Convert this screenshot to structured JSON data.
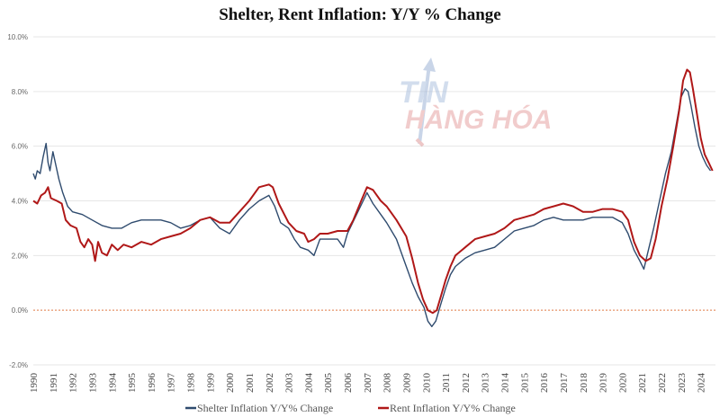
{
  "chart_data": {
    "type": "line",
    "title": "Shelter, Rent Inflation: Y/Y % Change",
    "xlabel": "",
    "ylabel": "",
    "ylim": [
      -2,
      10
    ],
    "xlim": [
      1990,
      2024.75
    ],
    "yticks": [
      -2,
      0,
      2,
      4,
      6,
      8,
      10
    ],
    "ytick_labels": [
      "-2.0%",
      "0.0%",
      "2.0%",
      "4.0%",
      "6.0%",
      "8.0%",
      "10.0%"
    ],
    "xticks": [
      "1990",
      "1991",
      "1992",
      "1993",
      "1994",
      "1995",
      "1996",
      "1997",
      "1998",
      "1999",
      "2000",
      "2001",
      "2002",
      "2003",
      "2004",
      "2005",
      "2006",
      "2007",
      "2008",
      "2009",
      "2010",
      "2011",
      "2012",
      "2013",
      "2014",
      "2015",
      "2016",
      "2017",
      "2018",
      "2019",
      "2020",
      "2021",
      "2022",
      "2023",
      "2024"
    ],
    "reference_line": 0,
    "legend_position": "bottom",
    "grid": "horizontal",
    "colors": {
      "shelter": "#2f4b6e",
      "rent": "#b01818",
      "zero_line": "#e07a45",
      "grid": "#e6e6e6"
    },
    "series": [
      {
        "name": "Shelter Inflation Y/Y% Change",
        "color": "#2f4b6e",
        "points": [
          [
            1990.0,
            5.0
          ],
          [
            1990.1,
            4.8
          ],
          [
            1990.2,
            5.1
          ],
          [
            1990.35,
            5.0
          ],
          [
            1990.5,
            5.6
          ],
          [
            1990.65,
            6.1
          ],
          [
            1990.75,
            5.4
          ],
          [
            1990.85,
            5.1
          ],
          [
            1991.0,
            5.8
          ],
          [
            1991.15,
            5.3
          ],
          [
            1991.3,
            4.8
          ],
          [
            1991.5,
            4.3
          ],
          [
            1991.75,
            3.8
          ],
          [
            1992.0,
            3.6
          ],
          [
            1992.5,
            3.5
          ],
          [
            1993.0,
            3.3
          ],
          [
            1993.5,
            3.1
          ],
          [
            1994.0,
            3.0
          ],
          [
            1994.5,
            3.0
          ],
          [
            1995.0,
            3.2
          ],
          [
            1995.5,
            3.3
          ],
          [
            1996.0,
            3.3
          ],
          [
            1996.5,
            3.3
          ],
          [
            1997.0,
            3.2
          ],
          [
            1997.5,
            3.0
          ],
          [
            1998.0,
            3.1
          ],
          [
            1998.5,
            3.3
          ],
          [
            1999.0,
            3.4
          ],
          [
            1999.5,
            3.0
          ],
          [
            2000.0,
            2.8
          ],
          [
            2000.5,
            3.3
          ],
          [
            2001.0,
            3.7
          ],
          [
            2001.5,
            4.0
          ],
          [
            2002.0,
            4.2
          ],
          [
            2002.3,
            3.8
          ],
          [
            2002.6,
            3.2
          ],
          [
            2003.0,
            3.0
          ],
          [
            2003.3,
            2.6
          ],
          [
            2003.6,
            2.3
          ],
          [
            2004.0,
            2.2
          ],
          [
            2004.3,
            2.0
          ],
          [
            2004.6,
            2.6
          ],
          [
            2005.0,
            2.6
          ],
          [
            2005.5,
            2.6
          ],
          [
            2005.8,
            2.3
          ],
          [
            2006.0,
            2.8
          ],
          [
            2006.4,
            3.4
          ],
          [
            2006.8,
            4.0
          ],
          [
            2007.0,
            4.3
          ],
          [
            2007.3,
            3.9
          ],
          [
            2007.7,
            3.5
          ],
          [
            2008.0,
            3.2
          ],
          [
            2008.5,
            2.6
          ],
          [
            2009.0,
            1.6
          ],
          [
            2009.3,
            1.0
          ],
          [
            2009.6,
            0.5
          ],
          [
            2009.9,
            0.1
          ],
          [
            2010.1,
            -0.4
          ],
          [
            2010.3,
            -0.6
          ],
          [
            2010.5,
            -0.4
          ],
          [
            2010.75,
            0.2
          ],
          [
            2011.0,
            0.8
          ],
          [
            2011.25,
            1.3
          ],
          [
            2011.5,
            1.6
          ],
          [
            2012.0,
            1.9
          ],
          [
            2012.5,
            2.1
          ],
          [
            2013.0,
            2.2
          ],
          [
            2013.5,
            2.3
          ],
          [
            2014.0,
            2.6
          ],
          [
            2014.5,
            2.9
          ],
          [
            2015.0,
            3.0
          ],
          [
            2015.5,
            3.1
          ],
          [
            2016.0,
            3.3
          ],
          [
            2016.5,
            3.4
          ],
          [
            2017.0,
            3.3
          ],
          [
            2017.5,
            3.3
          ],
          [
            2018.0,
            3.3
          ],
          [
            2018.5,
            3.4
          ],
          [
            2019.0,
            3.4
          ],
          [
            2019.5,
            3.4
          ],
          [
            2020.0,
            3.2
          ],
          [
            2020.3,
            2.8
          ],
          [
            2020.6,
            2.2
          ],
          [
            2020.9,
            1.8
          ],
          [
            2021.1,
            1.5
          ],
          [
            2021.3,
            2.1
          ],
          [
            2021.6,
            3.0
          ],
          [
            2021.9,
            4.0
          ],
          [
            2022.2,
            5.0
          ],
          [
            2022.5,
            5.8
          ],
          [
            2022.8,
            7.0
          ],
          [
            2023.0,
            7.8
          ],
          [
            2023.2,
            8.1
          ],
          [
            2023.35,
            8.0
          ],
          [
            2023.5,
            7.5
          ],
          [
            2023.7,
            6.7
          ],
          [
            2023.9,
            6.0
          ],
          [
            2024.1,
            5.6
          ],
          [
            2024.3,
            5.3
          ],
          [
            2024.5,
            5.1
          ]
        ]
      },
      {
        "name": "Rent Inflation Y/Y% Change",
        "color": "#b01818",
        "points": [
          [
            1990.0,
            4.0
          ],
          [
            1990.2,
            3.9
          ],
          [
            1990.4,
            4.2
          ],
          [
            1990.6,
            4.3
          ],
          [
            1990.75,
            4.5
          ],
          [
            1990.9,
            4.1
          ],
          [
            1991.2,
            4.0
          ],
          [
            1991.45,
            3.9
          ],
          [
            1991.65,
            3.3
          ],
          [
            1991.9,
            3.1
          ],
          [
            1992.2,
            3.0
          ],
          [
            1992.4,
            2.5
          ],
          [
            1992.6,
            2.3
          ],
          [
            1992.8,
            2.6
          ],
          [
            1993.0,
            2.4
          ],
          [
            1993.15,
            1.8
          ],
          [
            1993.3,
            2.5
          ],
          [
            1993.5,
            2.1
          ],
          [
            1993.75,
            2.0
          ],
          [
            1994.0,
            2.4
          ],
          [
            1994.3,
            2.2
          ],
          [
            1994.6,
            2.4
          ],
          [
            1995.0,
            2.3
          ],
          [
            1995.5,
            2.5
          ],
          [
            1996.0,
            2.4
          ],
          [
            1996.5,
            2.6
          ],
          [
            1997.0,
            2.7
          ],
          [
            1997.5,
            2.8
          ],
          [
            1998.0,
            3.0
          ],
          [
            1998.5,
            3.3
          ],
          [
            1999.0,
            3.4
          ],
          [
            1999.5,
            3.2
          ],
          [
            2000.0,
            3.2
          ],
          [
            2000.5,
            3.6
          ],
          [
            2001.0,
            4.0
          ],
          [
            2001.5,
            4.5
          ],
          [
            2002.0,
            4.6
          ],
          [
            2002.2,
            4.5
          ],
          [
            2002.5,
            3.9
          ],
          [
            2003.0,
            3.2
          ],
          [
            2003.4,
            2.9
          ],
          [
            2003.8,
            2.8
          ],
          [
            2004.0,
            2.5
          ],
          [
            2004.3,
            2.6
          ],
          [
            2004.6,
            2.8
          ],
          [
            2005.0,
            2.8
          ],
          [
            2005.5,
            2.9
          ],
          [
            2006.0,
            2.9
          ],
          [
            2006.3,
            3.3
          ],
          [
            2006.7,
            4.0
          ],
          [
            2007.0,
            4.5
          ],
          [
            2007.3,
            4.4
          ],
          [
            2007.7,
            4.0
          ],
          [
            2008.0,
            3.8
          ],
          [
            2008.5,
            3.3
          ],
          [
            2009.0,
            2.7
          ],
          [
            2009.3,
            1.9
          ],
          [
            2009.6,
            1.0
          ],
          [
            2009.85,
            0.4
          ],
          [
            2010.1,
            0.0
          ],
          [
            2010.35,
            -0.1
          ],
          [
            2010.55,
            0.0
          ],
          [
            2010.8,
            0.6
          ],
          [
            2011.0,
            1.1
          ],
          [
            2011.25,
            1.6
          ],
          [
            2011.5,
            2.0
          ],
          [
            2012.0,
            2.3
          ],
          [
            2012.5,
            2.6
          ],
          [
            2013.0,
            2.7
          ],
          [
            2013.5,
            2.8
          ],
          [
            2014.0,
            3.0
          ],
          [
            2014.5,
            3.3
          ],
          [
            2015.0,
            3.4
          ],
          [
            2015.5,
            3.5
          ],
          [
            2016.0,
            3.7
          ],
          [
            2016.5,
            3.8
          ],
          [
            2017.0,
            3.9
          ],
          [
            2017.5,
            3.8
          ],
          [
            2018.0,
            3.6
          ],
          [
            2018.5,
            3.6
          ],
          [
            2019.0,
            3.7
          ],
          [
            2019.5,
            3.7
          ],
          [
            2020.0,
            3.6
          ],
          [
            2020.3,
            3.3
          ],
          [
            2020.6,
            2.5
          ],
          [
            2020.9,
            2.0
          ],
          [
            2021.2,
            1.8
          ],
          [
            2021.45,
            1.9
          ],
          [
            2021.7,
            2.6
          ],
          [
            2022.0,
            3.8
          ],
          [
            2022.3,
            4.8
          ],
          [
            2022.6,
            6.0
          ],
          [
            2022.9,
            7.3
          ],
          [
            2023.1,
            8.4
          ],
          [
            2023.3,
            8.8
          ],
          [
            2023.45,
            8.7
          ],
          [
            2023.6,
            8.1
          ],
          [
            2023.8,
            7.2
          ],
          [
            2024.0,
            6.3
          ],
          [
            2024.2,
            5.7
          ],
          [
            2024.4,
            5.4
          ],
          [
            2024.6,
            5.1
          ]
        ]
      }
    ]
  },
  "watermark": {
    "line1": "TIN",
    "line2": "HÀNG HÓA"
  }
}
